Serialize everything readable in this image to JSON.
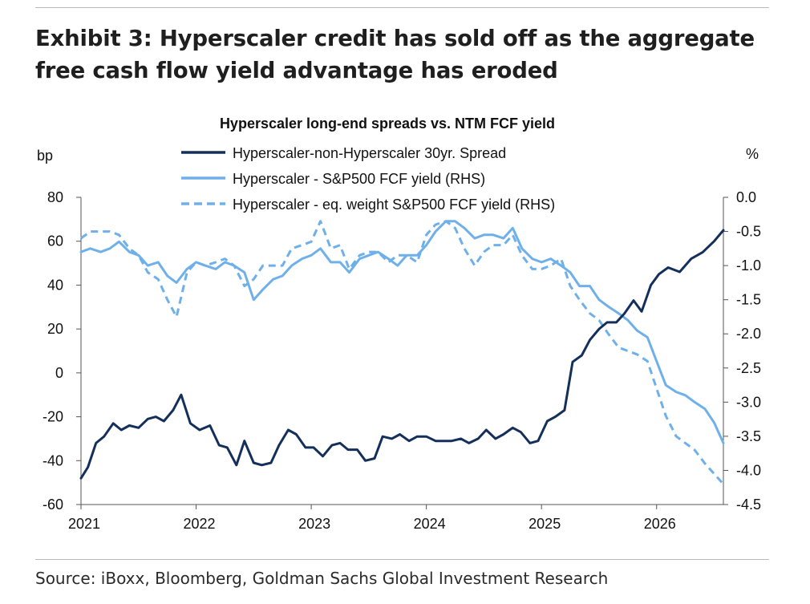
{
  "exhibit": {
    "title": "Exhibit 3: Hyperscaler credit has sold off as the aggregate free cash flow yield advantage has eroded",
    "source": "Source: iBoxx, Bloomberg, Goldman Sachs Global Investment Research"
  },
  "chart_data": {
    "type": "line",
    "title": "Hyperscaler long-end spreads vs. NTM FCF yield",
    "ylabel": "bp",
    "y2label": "%",
    "ylim": [
      -60,
      80
    ],
    "y2lim": [
      -4.5,
      0.0
    ],
    "yticks": [
      "80",
      "60",
      "40",
      "20",
      "0",
      "-20",
      "-40",
      "-60"
    ],
    "y2ticks": [
      "0.0",
      "-0.5",
      "-1.0",
      "-1.5",
      "-2.0",
      "-2.5",
      "-3.0",
      "-3.5",
      "-4.0",
      "-4.5"
    ],
    "xticks": [
      "2021",
      "2022",
      "2023",
      "2024",
      "2025",
      "2026"
    ],
    "xlim": [
      2021.0,
      2026.58
    ],
    "legend_position": "top-center",
    "grid": false,
    "colors": {
      "spread": "#14305a",
      "fcf": "#6fb0ea",
      "fcf_eq": "#6fb0ea"
    },
    "series": [
      {
        "name": "Hyperscaler-non-Hyperscaler 30yr. Spread",
        "axis": "left",
        "style": "solid",
        "points": [
          [
            2021.0,
            -48
          ],
          [
            2021.06,
            -43
          ],
          [
            2021.13,
            -32
          ],
          [
            2021.2,
            -29
          ],
          [
            2021.28,
            -23
          ],
          [
            2021.35,
            -26
          ],
          [
            2021.42,
            -24
          ],
          [
            2021.5,
            -25
          ],
          [
            2021.58,
            -21
          ],
          [
            2021.65,
            -20
          ],
          [
            2021.72,
            -22
          ],
          [
            2021.8,
            -17
          ],
          [
            2021.87,
            -10
          ],
          [
            2021.95,
            -23
          ],
          [
            2022.03,
            -26
          ],
          [
            2022.12,
            -24
          ],
          [
            2022.2,
            -33
          ],
          [
            2022.27,
            -34
          ],
          [
            2022.35,
            -42
          ],
          [
            2022.42,
            -31
          ],
          [
            2022.5,
            -41
          ],
          [
            2022.57,
            -42
          ],
          [
            2022.65,
            -41
          ],
          [
            2022.72,
            -33
          ],
          [
            2022.8,
            -26
          ],
          [
            2022.87,
            -28
          ],
          [
            2022.95,
            -34
          ],
          [
            2023.02,
            -34
          ],
          [
            2023.1,
            -38
          ],
          [
            2023.18,
            -33
          ],
          [
            2023.25,
            -32
          ],
          [
            2023.32,
            -35
          ],
          [
            2023.4,
            -35
          ],
          [
            2023.47,
            -40
          ],
          [
            2023.55,
            -39
          ],
          [
            2023.62,
            -29
          ],
          [
            2023.7,
            -30
          ],
          [
            2023.77,
            -28
          ],
          [
            2023.85,
            -31
          ],
          [
            2023.92,
            -29
          ],
          [
            2024.0,
            -29
          ],
          [
            2024.08,
            -31
          ],
          [
            2024.15,
            -31
          ],
          [
            2024.22,
            -31
          ],
          [
            2024.3,
            -30
          ],
          [
            2024.37,
            -32
          ],
          [
            2024.45,
            -30
          ],
          [
            2024.52,
            -26
          ],
          [
            2024.6,
            -30
          ],
          [
            2024.67,
            -28
          ],
          [
            2024.75,
            -25
          ],
          [
            2024.82,
            -27
          ],
          [
            2024.9,
            -32
          ],
          [
            2024.97,
            -31
          ],
          [
            2025.05,
            -22
          ],
          [
            2025.12,
            -20
          ],
          [
            2025.2,
            -17
          ],
          [
            2025.27,
            5
          ],
          [
            2025.35,
            8
          ],
          [
            2025.42,
            15
          ],
          [
            2025.5,
            20
          ],
          [
            2025.57,
            23
          ],
          [
            2025.65,
            23
          ],
          [
            2025.72,
            27
          ],
          [
            2025.8,
            33
          ],
          [
            2025.87,
            28
          ],
          [
            2025.95,
            40
          ],
          [
            2026.02,
            45
          ],
          [
            2026.1,
            48
          ],
          [
            2026.2,
            46
          ],
          [
            2026.3,
            52
          ],
          [
            2026.4,
            55
          ],
          [
            2026.5,
            60
          ],
          [
            2026.58,
            65
          ]
        ]
      },
      {
        "name": "Hyperscaler - S&P500 FCF yield (RHS)",
        "axis": "right",
        "style": "solid",
        "points": [
          [
            2021.0,
            -0.8
          ],
          [
            2021.08,
            -0.75
          ],
          [
            2021.17,
            -0.8
          ],
          [
            2021.25,
            -0.75
          ],
          [
            2021.33,
            -0.65
          ],
          [
            2021.42,
            -0.8
          ],
          [
            2021.5,
            -0.85
          ],
          [
            2021.58,
            -1.0
          ],
          [
            2021.67,
            -0.95
          ],
          [
            2021.75,
            -1.15
          ],
          [
            2021.83,
            -1.25
          ],
          [
            2021.92,
            -1.05
          ],
          [
            2022.0,
            -0.95
          ],
          [
            2022.08,
            -1.0
          ],
          [
            2022.17,
            -1.05
          ],
          [
            2022.25,
            -0.95
          ],
          [
            2022.33,
            -1.0
          ],
          [
            2022.42,
            -1.1
          ],
          [
            2022.5,
            -1.5
          ],
          [
            2022.58,
            -1.35
          ],
          [
            2022.67,
            -1.2
          ],
          [
            2022.75,
            -1.15
          ],
          [
            2022.83,
            -1.0
          ],
          [
            2022.92,
            -0.9
          ],
          [
            2023.0,
            -0.85
          ],
          [
            2023.08,
            -0.75
          ],
          [
            2023.17,
            -0.95
          ],
          [
            2023.25,
            -0.95
          ],
          [
            2023.33,
            -1.1
          ],
          [
            2023.42,
            -0.9
          ],
          [
            2023.5,
            -0.85
          ],
          [
            2023.58,
            -0.8
          ],
          [
            2023.67,
            -0.9
          ],
          [
            2023.75,
            -1.0
          ],
          [
            2023.83,
            -0.85
          ],
          [
            2023.92,
            -0.85
          ],
          [
            2024.0,
            -0.7
          ],
          [
            2024.08,
            -0.5
          ],
          [
            2024.17,
            -0.35
          ],
          [
            2024.25,
            -0.35
          ],
          [
            2024.33,
            -0.45
          ],
          [
            2024.42,
            -0.6
          ],
          [
            2024.5,
            -0.55
          ],
          [
            2024.58,
            -0.55
          ],
          [
            2024.67,
            -0.6
          ],
          [
            2024.75,
            -0.45
          ],
          [
            2024.83,
            -0.75
          ],
          [
            2024.92,
            -0.9
          ],
          [
            2025.0,
            -0.95
          ],
          [
            2025.08,
            -0.9
          ],
          [
            2025.17,
            -1.0
          ],
          [
            2025.25,
            -1.1
          ],
          [
            2025.33,
            -1.3
          ],
          [
            2025.42,
            -1.3
          ],
          [
            2025.5,
            -1.5
          ],
          [
            2025.58,
            -1.6
          ],
          [
            2025.67,
            -1.7
          ],
          [
            2025.75,
            -1.8
          ],
          [
            2025.83,
            -1.95
          ],
          [
            2025.92,
            -2.05
          ],
          [
            2026.0,
            -2.4
          ],
          [
            2026.08,
            -2.75
          ],
          [
            2026.17,
            -2.85
          ],
          [
            2026.25,
            -2.9
          ],
          [
            2026.33,
            -3.0
          ],
          [
            2026.42,
            -3.1
          ],
          [
            2026.5,
            -3.3
          ],
          [
            2026.58,
            -3.6
          ]
        ]
      },
      {
        "name": "Hyperscaler - eq. weight S&P500 FCF yield (RHS)",
        "axis": "right",
        "style": "dashed",
        "points": [
          [
            2021.0,
            -0.6
          ],
          [
            2021.08,
            -0.5
          ],
          [
            2021.17,
            -0.5
          ],
          [
            2021.25,
            -0.5
          ],
          [
            2021.33,
            -0.55
          ],
          [
            2021.42,
            -0.75
          ],
          [
            2021.5,
            -0.85
          ],
          [
            2021.58,
            -1.1
          ],
          [
            2021.67,
            -1.2
          ],
          [
            2021.75,
            -1.5
          ],
          [
            2021.83,
            -1.75
          ],
          [
            2021.92,
            -1.1
          ],
          [
            2022.0,
            -0.95
          ],
          [
            2022.08,
            -1.0
          ],
          [
            2022.17,
            -0.95
          ],
          [
            2022.25,
            -0.9
          ],
          [
            2022.33,
            -1.0
          ],
          [
            2022.42,
            -1.3
          ],
          [
            2022.5,
            -1.2
          ],
          [
            2022.58,
            -1.0
          ],
          [
            2022.67,
            -1.0
          ],
          [
            2022.75,
            -1.0
          ],
          [
            2022.83,
            -0.75
          ],
          [
            2022.92,
            -0.7
          ],
          [
            2023.0,
            -0.65
          ],
          [
            2023.08,
            -0.35
          ],
          [
            2023.17,
            -0.75
          ],
          [
            2023.25,
            -0.7
          ],
          [
            2023.33,
            -1.05
          ],
          [
            2023.42,
            -0.85
          ],
          [
            2023.5,
            -0.8
          ],
          [
            2023.58,
            -0.8
          ],
          [
            2023.67,
            -0.95
          ],
          [
            2023.75,
            -0.85
          ],
          [
            2023.83,
            -0.85
          ],
          [
            2023.92,
            -0.95
          ],
          [
            2024.0,
            -0.55
          ],
          [
            2024.08,
            -0.4
          ],
          [
            2024.17,
            -0.35
          ],
          [
            2024.25,
            -0.45
          ],
          [
            2024.33,
            -0.75
          ],
          [
            2024.42,
            -1.0
          ],
          [
            2024.5,
            -0.8
          ],
          [
            2024.58,
            -0.7
          ],
          [
            2024.67,
            -0.7
          ],
          [
            2024.75,
            -0.55
          ],
          [
            2024.83,
            -0.85
          ],
          [
            2024.92,
            -1.05
          ],
          [
            2025.0,
            -1.05
          ],
          [
            2025.08,
            -1.0
          ],
          [
            2025.17,
            -0.9
          ],
          [
            2025.25,
            -1.3
          ],
          [
            2025.33,
            -1.5
          ],
          [
            2025.42,
            -1.7
          ],
          [
            2025.5,
            -1.8
          ],
          [
            2025.58,
            -2.0
          ],
          [
            2025.67,
            -2.2
          ],
          [
            2025.75,
            -2.25
          ],
          [
            2025.83,
            -2.3
          ],
          [
            2025.92,
            -2.4
          ],
          [
            2026.0,
            -2.8
          ],
          [
            2026.08,
            -3.2
          ],
          [
            2026.17,
            -3.5
          ],
          [
            2026.25,
            -3.6
          ],
          [
            2026.33,
            -3.7
          ],
          [
            2026.42,
            -3.9
          ],
          [
            2026.5,
            -4.05
          ],
          [
            2026.58,
            -4.2
          ]
        ]
      }
    ]
  }
}
